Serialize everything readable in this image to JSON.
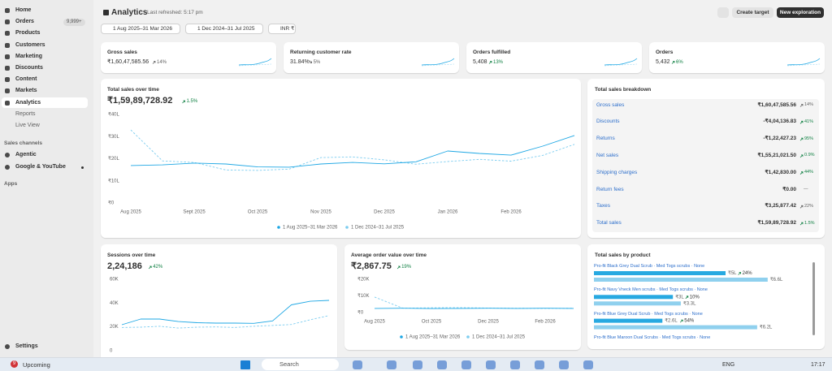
{
  "sidebar": {
    "nav": [
      "Home",
      "Orders",
      "Products",
      "Customers",
      "Marketing",
      "Discounts",
      "Content",
      "Markets",
      "Analytics"
    ],
    "orders_badge": "9,999+",
    "analytics_sub": [
      "Reports",
      "Live View"
    ],
    "sales_channels": "Sales channels",
    "channels": [
      "Agentic",
      "Google & YouTube"
    ],
    "apps": "Apps",
    "settings": "Settings"
  },
  "header": {
    "title": "Analytics",
    "refreshed": "Last refreshed: 5:17 pm",
    "create_target": "Create target",
    "new_exploration": "New exploration",
    "filters": [
      "1 Aug 2025–31 Mar 2026",
      "1 Dec 2024–31 Jul 2025",
      "INR ₹"
    ]
  },
  "kpis": [
    {
      "label": "Gross sales",
      "value": "₹1,60,47,585.56",
      "change": "14%",
      "trend": "up",
      "color": "#616161"
    },
    {
      "label": "Returning customer rate",
      "value": "31.84%",
      "change": "5%",
      "trend": "down",
      "color": "#616161"
    },
    {
      "label": "Orders fulfilled",
      "value": "5,408",
      "change": "13%",
      "trend": "up",
      "color": "#108043"
    },
    {
      "label": "Orders",
      "value": "5,432",
      "change": "6%",
      "trend": "up",
      "color": "#108043"
    }
  ],
  "total_sales": {
    "type": "line",
    "title": "Total sales over time",
    "value": "₹1,59,89,728.92",
    "change": "1.5%",
    "color": "#108043",
    "legend": true,
    "categories": [
      "Aug 2025",
      null,
      "Sept 2025",
      null,
      "Oct 2025",
      null,
      "Nov 2025",
      null,
      "Dec 2025",
      null,
      "Jan 2026",
      null,
      "Feb 2026",
      null,
      null
    ],
    "series": [
      {
        "name": "1 Aug 2025–31 Mar 2026",
        "color": "#1ea7e4",
        "line_style": "solid",
        "values": [
          16.9,
          17.2,
          18.0,
          17.6,
          16.3,
          16.2,
          17.6,
          18.3,
          17.7,
          18.6,
          23.5,
          22.4,
          21.6,
          25.7,
          30.5
        ]
      },
      {
        "name": "1 Dec 2024–31 Jul 2025",
        "color": "#7dcdf0",
        "line_style": "dashed",
        "values": [
          33.0,
          19.0,
          18.3,
          14.9,
          14.7,
          15.3,
          20.5,
          20.8,
          19.5,
          17.5,
          18.7,
          19.7,
          18.9,
          21.5,
          26.5
        ]
      }
    ],
    "ylim": [
      0,
      40
    ],
    "yticks": [
      {
        "value": 0,
        "label": "₹0"
      },
      {
        "value": 10,
        "label": "₹10L"
      },
      {
        "value": 20,
        "label": "₹20L"
      },
      {
        "value": 30,
        "label": "₹30L"
      },
      {
        "value": 40,
        "label": "₹40L"
      }
    ]
  },
  "breakdown": {
    "title": "Total sales breakdown",
    "rows": [
      {
        "label": "Gross sales",
        "value": "₹1,60,47,585.56",
        "change": "14%",
        "color": "#616161"
      },
      {
        "label": "Discounts",
        "value": "-₹4,04,136.83",
        "change": "41%",
        "color": "#108043"
      },
      {
        "label": "Returns",
        "value": "-₹1,22,427.23",
        "change": "95%",
        "color": "#108043"
      },
      {
        "label": "Net sales",
        "value": "₹1,55,21,021.50",
        "change": "0.9%",
        "color": "#108043"
      },
      {
        "label": "Shipping charges",
        "value": "₹1,42,830.00",
        "change": "44%",
        "color": "#108043"
      },
      {
        "label": "Return fees",
        "value": "₹0.00",
        "change": "—"
      },
      {
        "label": "Taxes",
        "value": "₹3,25,877.42",
        "change": "22%",
        "color": "#616161"
      },
      {
        "label": "Total sales",
        "value": "₹1,59,89,728.92",
        "change": "1.5%",
        "color": "#108043"
      }
    ]
  },
  "sessions": {
    "type": "line",
    "title": "Sessions over time",
    "value": "2,24,186",
    "change": "42%",
    "color": "#108043",
    "legend": false,
    "series": [
      {
        "name": "1 Aug 2025–31 Mar 2026",
        "color": "#1ea7e4",
        "line_style": "solid",
        "values": [
          21.8,
          26.6,
          26.6,
          24.5,
          23.5,
          23.2,
          23.2,
          23.0,
          25.0,
          38.5,
          41.5,
          42.3
        ]
      },
      {
        "name": "1 Dec 2024–31 Jul 2025",
        "color": "#7dcdf0",
        "line_style": "dashed",
        "values": [
          19.5,
          19.8,
          20.5,
          19.0,
          19.8,
          20.0,
          19.5,
          20.5,
          21.2,
          22.0,
          26.0,
          29.5
        ]
      }
    ],
    "ylim": [
      0,
      60
    ],
    "yticks": [
      0,
      {
        "value": 20,
        "label": "20K"
      },
      {
        "value": 40,
        "label": "40K"
      },
      {
        "value": 60,
        "label": "60K"
      }
    ]
  },
  "aov": {
    "type": "line",
    "title": "Average order value over time",
    "value": "₹2,867.75",
    "change": "19%",
    "color": "#108043",
    "legend": true,
    "categories": [
      "Aug 2025",
      null,
      "Oct 2025",
      null,
      "Dec 2025",
      null,
      "Feb 2026",
      null
    ],
    "series": [
      {
        "name": "1 Aug 2025–31 Mar 2026",
        "color": "#1ea7e4",
        "line_style": "solid",
        "values": [
          2.5,
          2.6,
          2.4,
          2.5,
          2.6,
          2.5,
          2.6,
          2.5
        ]
      },
      {
        "name": "1 Dec 2024–31 Jul 2025",
        "color": "#7dcdf0",
        "line_style": "dashed",
        "values": [
          9.3,
          2.6,
          2.9,
          3.0,
          2.7,
          2.6,
          2.5,
          2.6
        ]
      }
    ],
    "ylim": [
      0,
      20
    ],
    "yticks": [
      {
        "value": 0,
        "label": "₹0"
      },
      {
        "value": 10,
        "label": "₹10K"
      },
      {
        "value": 20,
        "label": "₹20K"
      }
    ]
  },
  "products": {
    "title": "Total sales by product",
    "current_color": "#27a9e1",
    "previous_color": "#8fd0ee",
    "rows": [
      {
        "name": "Pro-fit Black Grey Dual Scrub · Med Togs scrubs · None",
        "current": 5,
        "current_label": "₹5L",
        "change": "24%",
        "previous": 6.6,
        "previous_label": "₹6.6L"
      },
      {
        "name": "Pro-fit Navy Vneck Men scrubs · Med Togs scrubs · None",
        "current": 3,
        "current_label": "₹3L",
        "change": "10%",
        "previous": 3.3,
        "previous_label": "₹3.3L"
      },
      {
        "name": "Pro-fit Blue Grey Dual Scrub · Med Togs scrubs · None",
        "current": 2.6,
        "current_label": "₹2.6L",
        "change": "54%",
        "previous": 6.2,
        "previous_label": "₹6.2L"
      },
      {
        "name": "Pro-fit Blue Maroon Dual Scrubs · Med Togs scrubs · None"
      }
    ]
  },
  "taskbar": {
    "badge": "9",
    "upcoming": "Upcoming",
    "search": "Search",
    "lang": "ENG",
    "time": "17:17"
  }
}
